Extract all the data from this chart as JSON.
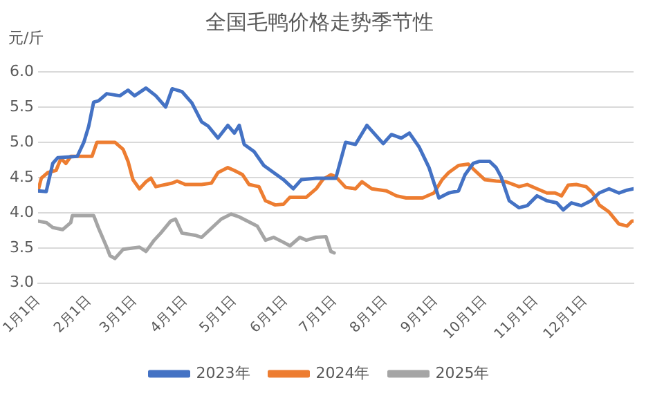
{
  "chart_data": {
    "type": "line",
    "title": "全国毛鸭价格走势季节性",
    "ylabel": "元/斤",
    "xlim": [
      "--01-01",
      "--12-31"
    ],
    "xticks": [
      {
        "value": "--01-01",
        "label": "1月1日"
      },
      {
        "value": "--02-01",
        "label": "2月1日"
      },
      {
        "value": "--03-01",
        "label": "3月1日"
      },
      {
        "value": "--04-01",
        "label": "4月1日"
      },
      {
        "value": "--05-01",
        "label": "5月1日"
      },
      {
        "value": "--06-01",
        "label": "6月1日"
      },
      {
        "value": "--07-01",
        "label": "7月1日"
      },
      {
        "value": "--08-01",
        "label": "8月1日"
      },
      {
        "value": "--09-01",
        "label": "9月1日"
      },
      {
        "value": "--10-01",
        "label": "10月1日"
      },
      {
        "value": "--11-01",
        "label": "11月1日"
      },
      {
        "value": "--12-01",
        "label": "12月1日"
      }
    ],
    "ylim": [
      3,
      6
    ],
    "yticks": [
      {
        "value": 3,
        "label": "3.0"
      },
      {
        "value": 3.5,
        "label": "3.5"
      },
      {
        "value": 4,
        "label": "4.0"
      },
      {
        "value": 4.5,
        "label": "4.5"
      },
      {
        "value": 5,
        "label": "5.0"
      },
      {
        "value": 5.5,
        "label": "5.5"
      },
      {
        "value": 6,
        "label": "6.0"
      }
    ],
    "grid": "y",
    "legend": "bottom",
    "marker": "none",
    "line_style": "solid",
    "series": [
      {
        "name": "2023年",
        "color": "#4472c4",
        "x": [
          "--01-01",
          "--01-06",
          "--01-10",
          "--01-13",
          "--01-25",
          "--01-29",
          "--02-01",
          "--02-04",
          "--02-07",
          "--02-12",
          "--02-20",
          "--02-25",
          "--03-01",
          "--03-08",
          "--03-14",
          "--03-20",
          "--03-24",
          "--03-30",
          "--04-05",
          "--04-11",
          "--04-15",
          "--04-21",
          "--04-27",
          "--05-01",
          "--05-04",
          "--05-07",
          "--05-13",
          "--05-19",
          "--05-25",
          "--05-31",
          "--06-06",
          "--06-11",
          "--06-20",
          "--07-02",
          "--07-08",
          "--07-14",
          "--07-21",
          "--07-31",
          "--08-05",
          "--08-11",
          "--08-16",
          "--08-22",
          "--08-28",
          "--09-03",
          "--09-09",
          "--09-15",
          "--09-19",
          "--09-24",
          "--09-28",
          "--10-04",
          "--10-08",
          "--10-11",
          "--10-16",
          "--10-22",
          "--10-27",
          "--11-02",
          "--11-08",
          "--11-14",
          "--11-18",
          "--11-23",
          "--11-29",
          "--12-05",
          "--12-10",
          "--12-16",
          "--12-22",
          "--12-27",
          "--12-31"
        ],
        "values": [
          4.31,
          4.3,
          4.7,
          4.78,
          4.8,
          5.0,
          5.23,
          5.57,
          5.59,
          5.69,
          5.66,
          5.74,
          5.66,
          5.77,
          5.66,
          5.5,
          5.76,
          5.72,
          5.56,
          5.29,
          5.23,
          5.06,
          5.24,
          5.13,
          5.24,
          4.97,
          4.87,
          4.67,
          4.57,
          4.47,
          4.34,
          4.47,
          4.49,
          4.49,
          5.0,
          4.97,
          5.24,
          4.98,
          5.11,
          5.06,
          5.13,
          4.93,
          4.64,
          4.21,
          4.28,
          4.31,
          4.54,
          4.7,
          4.73,
          4.73,
          4.64,
          4.51,
          4.17,
          4.07,
          4.1,
          4.24,
          4.17,
          4.14,
          4.04,
          4.14,
          4.1,
          4.17,
          4.28,
          4.34,
          4.28,
          4.32,
          4.34
        ]
      },
      {
        "name": "2024年",
        "color": "#ed7d31",
        "x": [
          "--01-01",
          "--01-03",
          "--01-07",
          "--01-12",
          "--01-15",
          "--01-18",
          "--01-21",
          "--02-03",
          "--02-06",
          "--02-17",
          "--02-22",
          "--02-25",
          "--02-28",
          "--03-04",
          "--03-08",
          "--03-11",
          "--03-14",
          "--03-24",
          "--03-27",
          "--04-01",
          "--04-11",
          "--04-17",
          "--04-21",
          "--04-27",
          "--05-01",
          "--05-06",
          "--05-10",
          "--05-16",
          "--05-20",
          "--05-26",
          "--05-31",
          "--06-04",
          "--06-14",
          "--06-20",
          "--06-24",
          "--06-29",
          "--07-02",
          "--07-08",
          "--07-14",
          "--07-18",
          "--07-24",
          "--08-02",
          "--08-08",
          "--08-14",
          "--08-24",
          "--08-31",
          "--09-05",
          "--09-09",
          "--09-15",
          "--09-21",
          "--09-25",
          "--10-01",
          "--10-08",
          "--10-14",
          "--10-22",
          "--10-27",
          "--11-02",
          "--11-08",
          "--11-13",
          "--11-17",
          "--11-21",
          "--11-26",
          "--12-02",
          "--12-06",
          "--12-10",
          "--12-16",
          "--12-22",
          "--12-27",
          "--12-30",
          "--12-31"
        ],
        "values": [
          4.31,
          4.49,
          4.57,
          4.6,
          4.77,
          4.7,
          4.8,
          4.8,
          5.0,
          5.0,
          4.9,
          4.73,
          4.47,
          4.34,
          4.44,
          4.49,
          4.37,
          4.42,
          4.45,
          4.4,
          4.4,
          4.42,
          4.57,
          4.64,
          4.6,
          4.54,
          4.4,
          4.37,
          4.17,
          4.11,
          4.12,
          4.22,
          4.22,
          4.34,
          4.47,
          4.54,
          4.51,
          4.36,
          4.34,
          4.44,
          4.34,
          4.31,
          4.24,
          4.21,
          4.21,
          4.28,
          4.47,
          4.57,
          4.67,
          4.69,
          4.6,
          4.47,
          4.45,
          4.44,
          4.37,
          4.4,
          4.34,
          4.28,
          4.28,
          4.24,
          4.39,
          4.4,
          4.37,
          4.28,
          4.11,
          4.01,
          3.84,
          3.81,
          3.88,
          3.88
        ]
      },
      {
        "name": "2025年",
        "color": "#a5a5a5",
        "x": [
          "--01-01",
          "--01-06",
          "--01-10",
          "--01-16",
          "--01-21",
          "--01-22",
          "--02-04",
          "--02-07",
          "--02-12",
          "--02-14",
          "--02-17",
          "--02-22",
          "--03-04",
          "--03-08",
          "--03-13",
          "--03-17",
          "--03-23",
          "--03-26",
          "--03-30",
          "--04-07",
          "--04-11",
          "--04-17",
          "--04-23",
          "--04-29",
          "--05-04",
          "--05-09",
          "--05-15",
          "--05-20",
          "--05-25",
          "--05-31",
          "--06-04",
          "--06-10",
          "--06-14",
          "--06-20",
          "--06-26",
          "--06-29",
          "--07-01"
        ],
        "values": [
          3.88,
          3.86,
          3.79,
          3.76,
          3.86,
          3.96,
          3.96,
          3.78,
          3.51,
          3.39,
          3.35,
          3.48,
          3.51,
          3.45,
          3.61,
          3.71,
          3.88,
          3.91,
          3.71,
          3.68,
          3.65,
          3.78,
          3.91,
          3.98,
          3.94,
          3.88,
          3.81,
          3.61,
          3.65,
          3.58,
          3.53,
          3.65,
          3.61,
          3.65,
          3.66,
          3.45,
          3.43
        ]
      }
    ]
  }
}
